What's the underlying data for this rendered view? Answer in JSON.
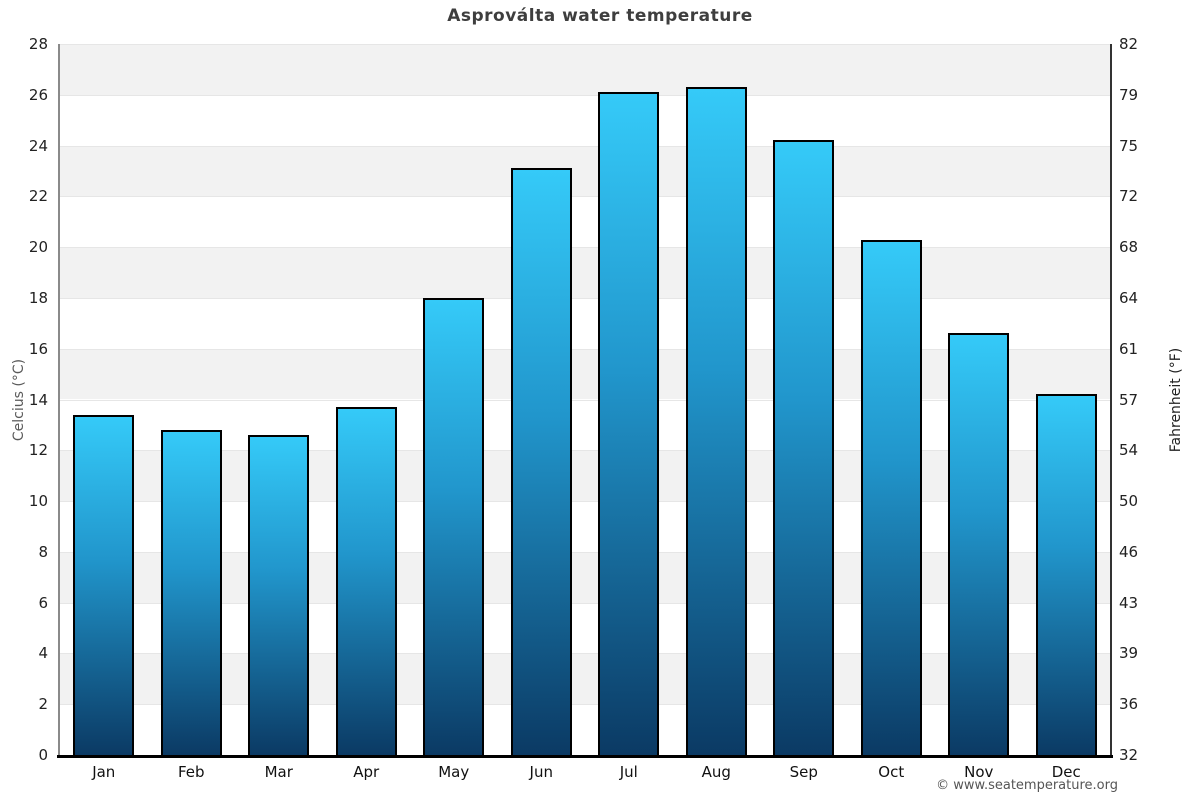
{
  "page": {
    "footer": "© www.seatemperature.org"
  },
  "chart_data": {
    "type": "bar",
    "title": "Asproválta water temperature",
    "categories": [
      "Jan",
      "Feb",
      "Mar",
      "Apr",
      "May",
      "Jun",
      "Jul",
      "Aug",
      "Sep",
      "Oct",
      "Nov",
      "Dec"
    ],
    "values": [
      13.4,
      12.8,
      12.6,
      13.7,
      18,
      23.1,
      26.1,
      26.3,
      24.2,
      20.3,
      16.6,
      14.2
    ],
    "ylabel_left": "Celcius (°C)",
    "ylabel_right": "Fahrenheit (°F)",
    "ylim": [
      0,
      28
    ],
    "yticks_celsius": [
      28,
      26,
      24,
      22,
      20,
      18,
      16,
      14,
      12,
      10,
      8,
      6,
      4,
      2,
      0
    ],
    "yticks_fahrenheit": [
      82,
      79,
      75,
      72,
      68,
      64,
      61,
      57,
      54,
      50,
      46,
      43,
      39,
      36,
      32
    ],
    "grid": "alternating-horizontal-bands",
    "legend": "none",
    "bar_color_top": "#35caf8",
    "bar_color_bottom": "#0b3a64",
    "bar_border_color": "#000000"
  }
}
